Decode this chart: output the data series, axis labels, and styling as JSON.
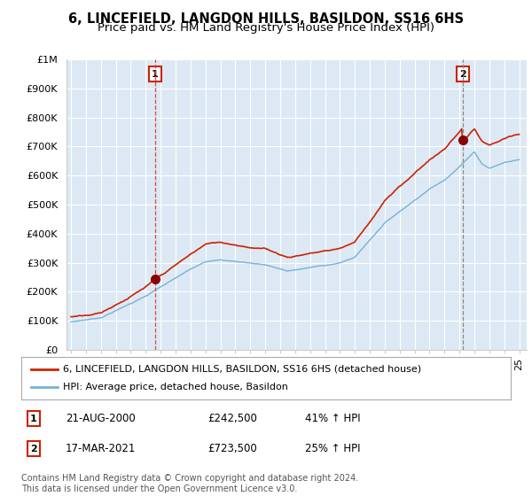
{
  "title": "6, LINCEFIELD, LANGDON HILLS, BASILDON, SS16 6HS",
  "subtitle": "Price paid vs. HM Land Registry's House Price Index (HPI)",
  "ylim": [
    0,
    1000000
  ],
  "sale1_date": 2000.62,
  "sale1_price": 242500,
  "sale2_date": 2021.21,
  "sale2_price": 723500,
  "hpi_color": "#7ab0d4",
  "price_color": "#cc2200",
  "sale1_vline_color": "#dd4444",
  "sale2_vline_color": "#888888",
  "background_color": "#ffffff",
  "plot_bg_color": "#dce9f5",
  "grid_color": "#ffffff",
  "legend_label1": "6, LINCEFIELD, LANGDON HILLS, BASILDON, SS16 6HS (detached house)",
  "legend_label2": "HPI: Average price, detached house, Basildon",
  "table_row1": [
    "1",
    "21-AUG-2000",
    "£242,500",
    "41% ↑ HPI"
  ],
  "table_row2": [
    "2",
    "17-MAR-2021",
    "£723,500",
    "25% ↑ HPI"
  ],
  "footnote": "Contains HM Land Registry data © Crown copyright and database right 2024.\nThis data is licensed under the Open Government Licence v3.0."
}
